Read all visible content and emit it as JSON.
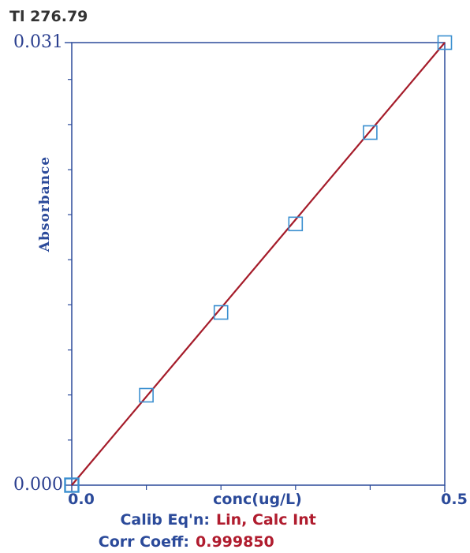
{
  "chart_data": {
    "type": "scatter",
    "title": "Tl 276.79",
    "xlabel": "conc(ug/L)",
    "ylabel": "Absorbance",
    "xlim": [
      0,
      0.5
    ],
    "ylim": [
      0,
      0.031
    ],
    "x_tick_labels": [
      {
        "value": 0.0,
        "label": "0.0"
      },
      {
        "value": 0.5,
        "label": "0.5"
      }
    ],
    "y_tick_labels": [
      {
        "value": 0.0,
        "label": "0.000"
      },
      {
        "value": 0.031,
        "label": "0.031"
      }
    ],
    "y_minor_ticks": [
      0.00316,
      0.00632,
      0.00947,
      0.01263,
      0.01579,
      0.01895,
      0.0221,
      0.02526,
      0.02842
    ],
    "x_minor_ticks": [
      0.1,
      0.2,
      0.3,
      0.4
    ],
    "series": [
      {
        "points": [
          {
            "x": 0.0,
            "y": 0.0
          },
          {
            "x": 0.1,
            "y": 0.0063
          },
          {
            "x": 0.2,
            "y": 0.0121
          },
          {
            "x": 0.3,
            "y": 0.0183
          },
          {
            "x": 0.4,
            "y": 0.0247
          },
          {
            "x": 0.5,
            "y": 0.031
          }
        ]
      }
    ],
    "fit_line": {
      "x": [
        0.0,
        0.5
      ],
      "y": [
        0.0,
        0.031
      ]
    },
    "grid": false,
    "colors": {
      "axis": "#2b4a9a",
      "marker": "#3a8fd0",
      "line": "#a51c2a"
    }
  },
  "calibration": {
    "eq_label": "Calib Eq'n:",
    "eq_value": "Lin, Calc Int",
    "corr_label": "Corr Coeff:",
    "corr_value": "0.999850"
  }
}
